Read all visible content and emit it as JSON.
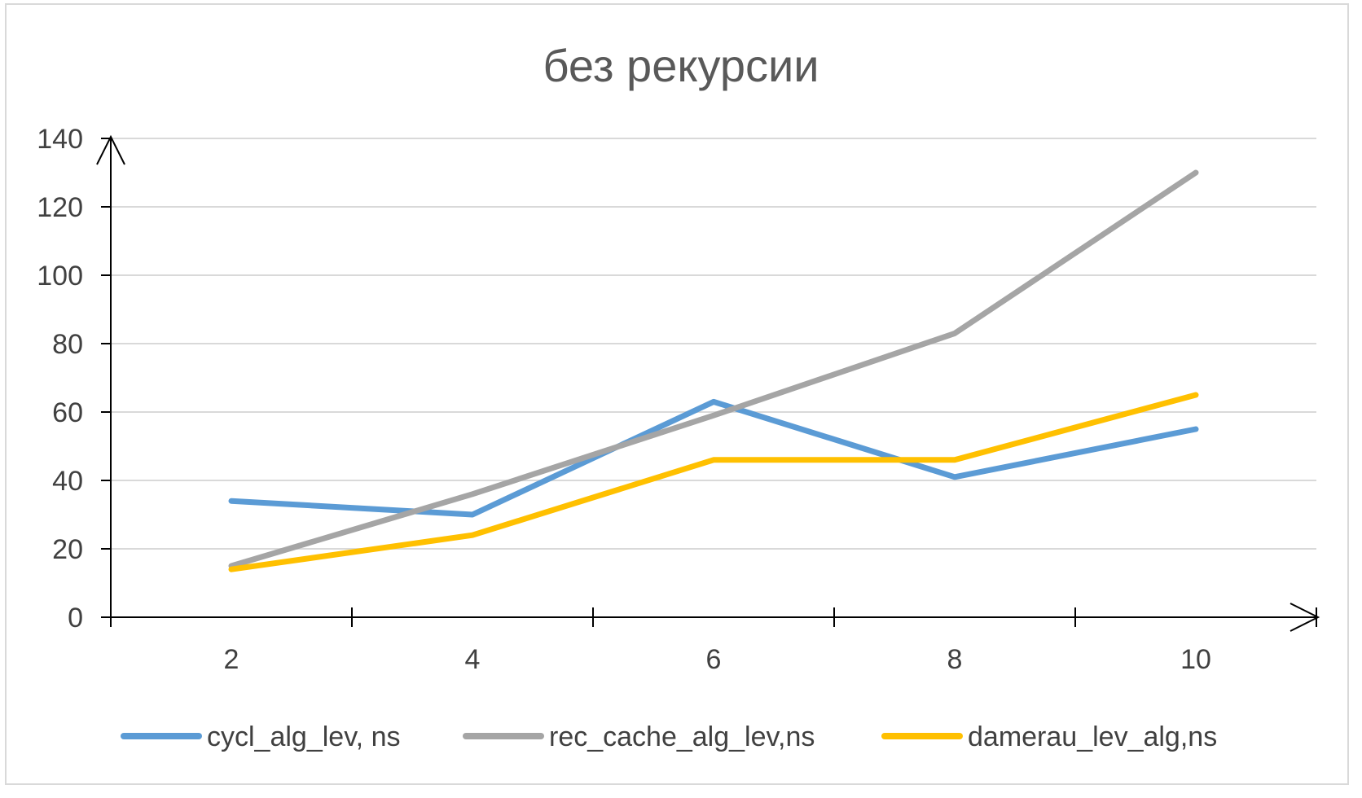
{
  "chart_data": {
    "type": "line",
    "title": "без рекурсии",
    "xlabel": "",
    "ylabel": "",
    "x": [
      2,
      4,
      6,
      8,
      10
    ],
    "x_ticks": [
      "2",
      "4",
      "6",
      "8",
      "10"
    ],
    "y_ticks": [
      "0",
      "20",
      "40",
      "60",
      "80",
      "100",
      "120",
      "140"
    ],
    "ylim": [
      0,
      140
    ],
    "grid": true,
    "legend_position": "bottom",
    "series": [
      {
        "name": "cycl_alg_lev, ns",
        "color": "#5b9bd5",
        "values": [
          34,
          30,
          63,
          41,
          55
        ]
      },
      {
        "name": "rec_cache_alg_lev,ns",
        "color": "#a5a5a5",
        "values": [
          15,
          36,
          59,
          83,
          130
        ]
      },
      {
        "name": "damerau_lev_alg,ns",
        "color": "#ffc000",
        "values": [
          14,
          24,
          46,
          46,
          65
        ]
      }
    ]
  }
}
